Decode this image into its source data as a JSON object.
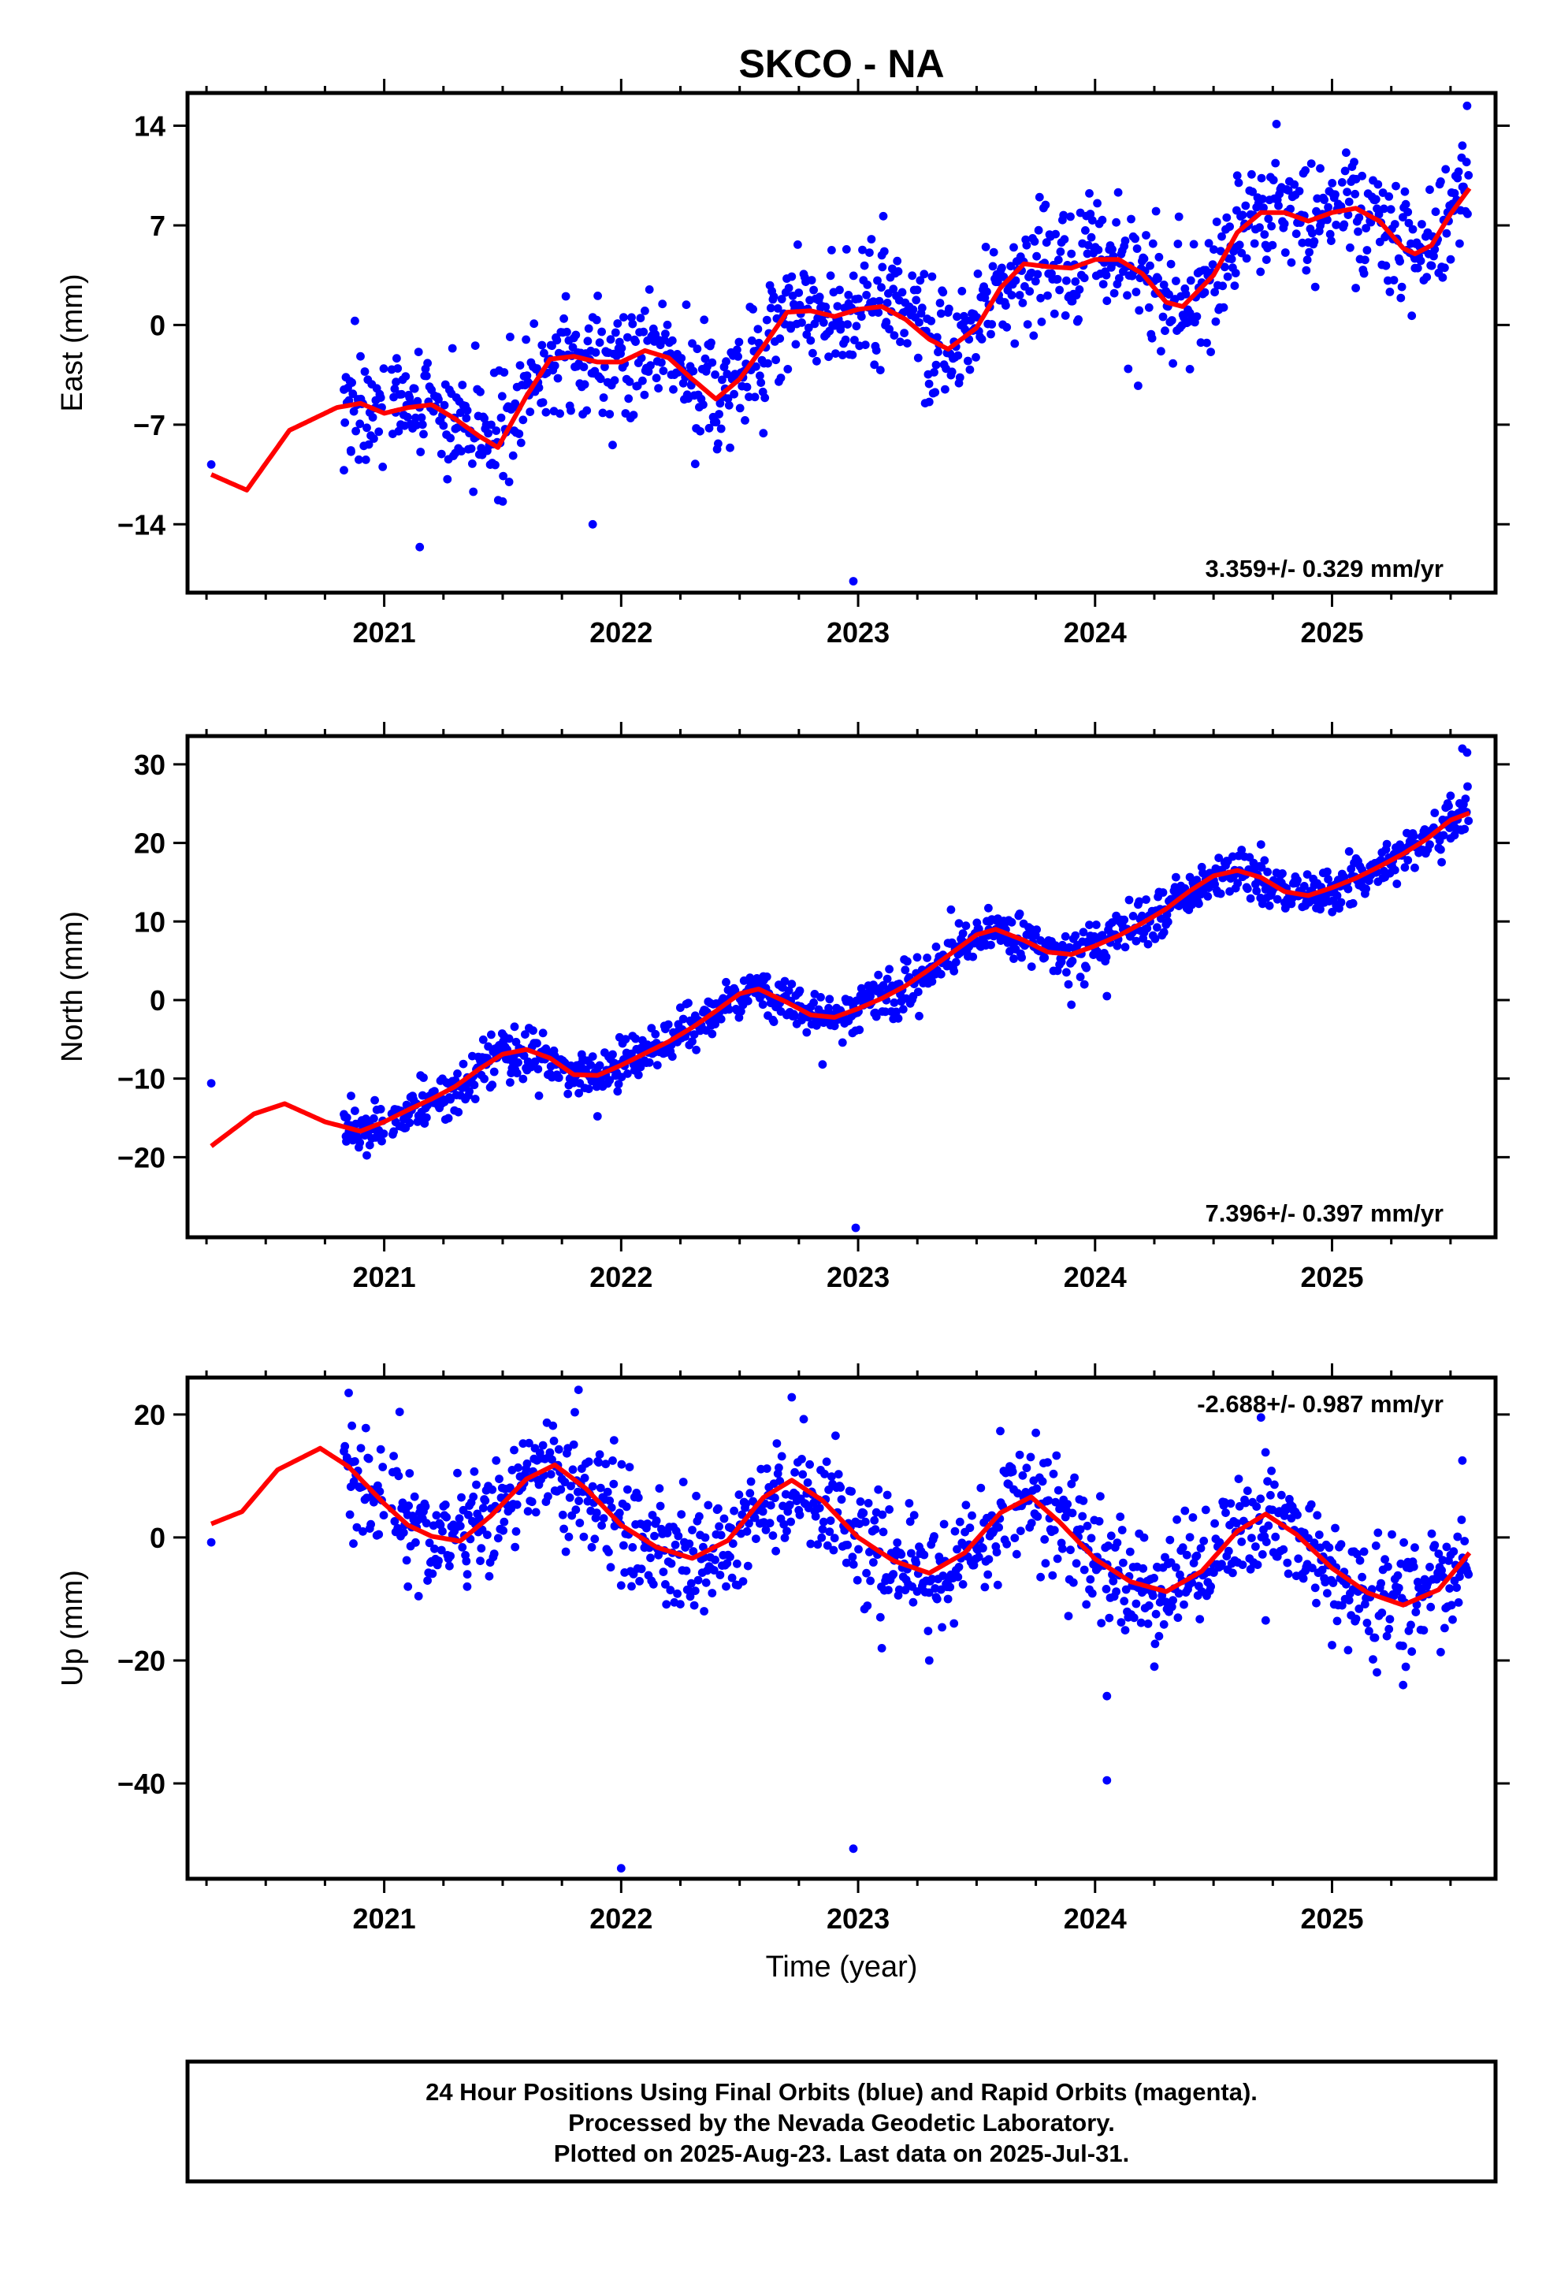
{
  "title": "SKCO - NA",
  "xlabel": "Time (year)",
  "colors": {
    "points": "#0000ff",
    "fit": "#ff0000",
    "frame": "#000000"
  },
  "footer": {
    "line1": "24 Hour Positions Using Final Orbits (blue) and Rapid Orbits (magenta).",
    "line2": "Processed by the Nevada Geodetic Laboratory.",
    "line3": "Plotted on 2025-Aug-23. Last data on 2025-Jul-31."
  },
  "chart_data": [
    {
      "type": "scatter",
      "ylabel": "East (mm)",
      "rate": "3.359+/- 0.329 mm/yr",
      "xlim": [
        2020.17,
        2025.69
      ],
      "ylim": [
        -18.8,
        16.3
      ],
      "yticks": [
        14,
        7,
        0,
        -7,
        -14
      ],
      "ytick_labels": [
        "14",
        "7",
        "0",
        "−7",
        "−14"
      ],
      "xticks": [
        2021,
        2022,
        2023,
        2024,
        2025
      ],
      "xtick_labels": [
        "2021",
        "2022",
        "2023",
        "2024",
        "2025"
      ],
      "data_start": 2020.83,
      "data_end": 2025.58,
      "fit_start": 2020.27,
      "series": [
        {
          "values": [
            [
              2020.27,
              -10.5
            ],
            [
              2020.27,
              -9.8
            ],
            [
              2020.42,
              -11.6
            ],
            [
              2020.6,
              -7.4
            ],
            [
              2020.8,
              -5.8
            ],
            [
              2020.9,
              -5.5
            ],
            [
              2021.0,
              -6.2
            ],
            [
              2021.1,
              -5.8
            ],
            [
              2021.2,
              -5.6
            ],
            [
              2021.3,
              -6.6
            ],
            [
              2021.4,
              -7.8
            ],
            [
              2021.48,
              -8.6
            ],
            [
              2021.6,
              -5.0
            ],
            [
              2021.7,
              -2.4
            ],
            [
              2021.8,
              -2.2
            ],
            [
              2021.9,
              -2.6
            ],
            [
              2022.0,
              -2.6
            ],
            [
              2022.1,
              -1.8
            ],
            [
              2022.2,
              -2.3
            ],
            [
              2022.3,
              -3.8
            ],
            [
              2022.4,
              -5.2
            ],
            [
              2022.5,
              -3.8
            ],
            [
              2022.6,
              -1.5
            ],
            [
              2022.7,
              0.9
            ],
            [
              2022.8,
              1.0
            ],
            [
              2022.9,
              0.6
            ],
            [
              2023.0,
              1.1
            ],
            [
              2023.1,
              1.3
            ],
            [
              2023.2,
              0.4
            ],
            [
              2023.3,
              -1.0
            ],
            [
              2023.38,
              -1.7
            ],
            [
              2023.5,
              -0.2
            ],
            [
              2023.6,
              2.6
            ],
            [
              2023.7,
              4.3
            ],
            [
              2023.8,
              4.1
            ],
            [
              2023.9,
              4.0
            ],
            [
              2024.0,
              4.6
            ],
            [
              2024.1,
              4.6
            ],
            [
              2024.2,
              3.6
            ],
            [
              2024.3,
              1.6
            ],
            [
              2024.37,
              1.3
            ],
            [
              2024.5,
              3.5
            ],
            [
              2024.6,
              6.5
            ],
            [
              2024.7,
              7.9
            ],
            [
              2024.8,
              7.9
            ],
            [
              2024.9,
              7.3
            ],
            [
              2025.0,
              7.9
            ],
            [
              2025.1,
              8.2
            ],
            [
              2025.2,
              7.3
            ],
            [
              2025.3,
              5.4
            ],
            [
              2025.35,
              5.0
            ],
            [
              2025.42,
              5.6
            ],
            [
              2025.5,
              7.8
            ],
            [
              2025.58,
              9.6
            ]
          ]
        },
        {
          "values": [
            [
              2020.83,
              -10.2
            ],
            [
              2020.86,
              -8.9
            ],
            [
              2020.9,
              -2.2
            ],
            [
              2021.05,
              -4.0
            ],
            [
              2021.15,
              -15.6
            ],
            [
              2021.3,
              -9.0
            ],
            [
              2021.5,
              -12.4
            ],
            [
              2021.88,
              -14.0
            ],
            [
              2022.1,
              1.0
            ],
            [
              2022.3,
              -4.0
            ],
            [
              2022.6,
              -7.6
            ],
            [
              2022.72,
              3.4
            ],
            [
              2022.96,
              1.5
            ],
            [
              2022.98,
              -18.0
            ],
            [
              2023.1,
              4.9
            ],
            [
              2023.3,
              -5.4
            ],
            [
              2023.6,
              3.5
            ],
            [
              2023.9,
              5.0
            ],
            [
              2024.05,
              1.7
            ],
            [
              2024.4,
              -3.1
            ],
            [
              2024.6,
              10.5
            ],
            [
              2024.95,
              11.0
            ],
            [
              2025.1,
              2.6
            ],
            [
              2025.35,
              4.0
            ],
            [
              2025.55,
              12.6
            ],
            [
              2025.57,
              15.4
            ]
          ]
        }
      ],
      "rate_position": "bottom-right"
    },
    {
      "type": "scatter",
      "ylabel": "North (mm)",
      "rate": "7.396+/- 0.397 mm/yr",
      "xlim": [
        2020.17,
        2025.69
      ],
      "ylim": [
        -30.2,
        33.6
      ],
      "yticks": [
        30,
        20,
        10,
        0,
        -10,
        -20
      ],
      "ytick_labels": [
        "30",
        "20",
        "10",
        "0",
        "−10",
        "−20"
      ],
      "xticks": [
        2021,
        2022,
        2023,
        2024,
        2025
      ],
      "xtick_labels": [
        "2021",
        "2022",
        "2023",
        "2024",
        "2025"
      ],
      "data_start": 2020.83,
      "data_end": 2025.58,
      "fit_start": 2020.27,
      "series": [
        {
          "values": [
            [
              2020.27,
              -18.6
            ],
            [
              2020.27,
              -10.6
            ],
            [
              2020.45,
              -14.5
            ],
            [
              2020.58,
              -13.2
            ],
            [
              2020.75,
              -15.5
            ],
            [
              2020.9,
              -16.7
            ],
            [
              2021.0,
              -15.5
            ],
            [
              2021.1,
              -14.0
            ],
            [
              2021.2,
              -12.6
            ],
            [
              2021.3,
              -11.0
            ],
            [
              2021.4,
              -8.8
            ],
            [
              2021.5,
              -6.9
            ],
            [
              2021.6,
              -6.3
            ],
            [
              2021.7,
              -7.4
            ],
            [
              2021.8,
              -9.5
            ],
            [
              2021.9,
              -9.6
            ],
            [
              2022.0,
              -8.3
            ],
            [
              2022.1,
              -6.8
            ],
            [
              2022.2,
              -5.3
            ],
            [
              2022.3,
              -3.5
            ],
            [
              2022.4,
              -1.4
            ],
            [
              2022.5,
              0.8
            ],
            [
              2022.58,
              1.4
            ],
            [
              2022.7,
              -0.3
            ],
            [
              2022.8,
              -1.9
            ],
            [
              2022.9,
              -2.2
            ],
            [
              2023.0,
              -1.1
            ],
            [
              2023.1,
              0.2
            ],
            [
              2023.2,
              1.8
            ],
            [
              2023.3,
              3.9
            ],
            [
              2023.4,
              6.1
            ],
            [
              2023.5,
              8.3
            ],
            [
              2023.58,
              9.0
            ],
            [
              2023.7,
              7.6
            ],
            [
              2023.8,
              6.1
            ],
            [
              2023.9,
              5.8
            ],
            [
              2024.0,
              6.9
            ],
            [
              2024.1,
              8.2
            ],
            [
              2024.2,
              9.8
            ],
            [
              2024.3,
              11.6
            ],
            [
              2024.4,
              13.9
            ],
            [
              2024.5,
              15.8
            ],
            [
              2024.6,
              16.5
            ],
            [
              2024.7,
              15.6
            ],
            [
              2024.8,
              13.8
            ],
            [
              2024.9,
              13.3
            ],
            [
              2025.0,
              14.3
            ],
            [
              2025.1,
              15.5
            ],
            [
              2025.2,
              17.0
            ],
            [
              2025.3,
              18.6
            ],
            [
              2025.4,
              20.5
            ],
            [
              2025.5,
              22.9
            ],
            [
              2025.58,
              23.8
            ]
          ]
        },
        {
          "values": [
            [
              2020.84,
              -18.0
            ],
            [
              2020.86,
              -12.2
            ],
            [
              2021.55,
              -3.4
            ],
            [
              2021.9,
              -14.8
            ],
            [
              2022.6,
              3.0
            ],
            [
              2022.85,
              -8.2
            ],
            [
              2022.99,
              -29.0
            ],
            [
              2023.05,
              -0.6
            ],
            [
              2023.55,
              11.7
            ],
            [
              2023.9,
              -0.6
            ],
            [
              2024.05,
              0.5
            ],
            [
              2024.4,
              12.6
            ],
            [
              2024.7,
              19.8
            ],
            [
              2024.8,
              12.4
            ],
            [
              2025.5,
              26.0
            ],
            [
              2025.55,
              32.0
            ],
            [
              2025.57,
              31.5
            ]
          ]
        }
      ],
      "rate_position": "bottom-right"
    },
    {
      "type": "scatter",
      "ylabel": "Up (mm)",
      "rate": "-2.688+/- 0.987 mm/yr",
      "xlim": [
        2020.17,
        2025.69
      ],
      "ylim": [
        -55.5,
        26.0
      ],
      "yticks": [
        20,
        0,
        -20,
        -40
      ],
      "ytick_labels": [
        "20",
        "0",
        "−20",
        "−40"
      ],
      "xticks": [
        2021,
        2022,
        2023,
        2024,
        2025
      ],
      "xtick_labels": [
        "2021",
        "2022",
        "2023",
        "2024",
        "2025"
      ],
      "data_start": 2020.83,
      "data_end": 2025.58,
      "fit_start": 2020.27,
      "series": [
        {
          "values": [
            [
              2020.27,
              2.2
            ],
            [
              2020.27,
              -0.8
            ],
            [
              2020.4,
              4.2
            ],
            [
              2020.55,
              11.0
            ],
            [
              2020.73,
              14.5
            ],
            [
              2020.85,
              11.5
            ],
            [
              2021.0,
              5.5
            ],
            [
              2021.1,
              2.0
            ],
            [
              2021.2,
              0.2
            ],
            [
              2021.32,
              -0.6
            ],
            [
              2021.45,
              3.5
            ],
            [
              2021.6,
              9.5
            ],
            [
              2021.72,
              11.8
            ],
            [
              2021.85,
              8.0
            ],
            [
              2022.0,
              2.0
            ],
            [
              2022.15,
              -1.6
            ],
            [
              2022.3,
              -3.4
            ],
            [
              2022.45,
              -0.5
            ],
            [
              2022.6,
              6.5
            ],
            [
              2022.72,
              9.3
            ],
            [
              2022.85,
              6.0
            ],
            [
              2023.0,
              0.0
            ],
            [
              2023.15,
              -3.8
            ],
            [
              2023.3,
              -5.8
            ],
            [
              2023.45,
              -2.5
            ],
            [
              2023.6,
              4.0
            ],
            [
              2023.73,
              6.6
            ],
            [
              2023.85,
              2.5
            ],
            [
              2024.0,
              -3.5
            ],
            [
              2024.15,
              -7.2
            ],
            [
              2024.3,
              -8.8
            ],
            [
              2024.45,
              -5.5
            ],
            [
              2024.6,
              1.0
            ],
            [
              2024.72,
              3.8
            ],
            [
              2024.85,
              0.5
            ],
            [
              2025.0,
              -5.0
            ],
            [
              2025.15,
              -9.0
            ],
            [
              2025.3,
              -11.0
            ],
            [
              2025.45,
              -8.5
            ],
            [
              2025.58,
              -2.5
            ]
          ]
        },
        {
          "values": [
            [
              2020.85,
              23.5
            ],
            [
              2020.87,
              -1.0
            ],
            [
              2021.1,
              -8.0
            ],
            [
              2021.35,
              -8.0
            ],
            [
              2021.82,
              24.0
            ],
            [
              2021.97,
              15.8
            ],
            [
              2022.0,
              -53.8
            ],
            [
              2022.0,
              -7.8
            ],
            [
              2022.35,
              -12.0
            ],
            [
              2022.72,
              22.8
            ],
            [
              2022.98,
              -50.6
            ],
            [
              2023.1,
              -18.0
            ],
            [
              2023.3,
              -20.0
            ],
            [
              2023.6,
              17.3
            ],
            [
              2023.75,
              17.0
            ],
            [
              2024.05,
              -25.8
            ],
            [
              2024.05,
              -39.5
            ],
            [
              2024.25,
              -21.0
            ],
            [
              2024.7,
              19.5
            ],
            [
              2024.72,
              -13.5
            ],
            [
              2025.0,
              -17.5
            ],
            [
              2025.3,
              -24.0
            ],
            [
              2025.55,
              12.5
            ]
          ]
        }
      ],
      "rate_position": "top-right"
    }
  ]
}
